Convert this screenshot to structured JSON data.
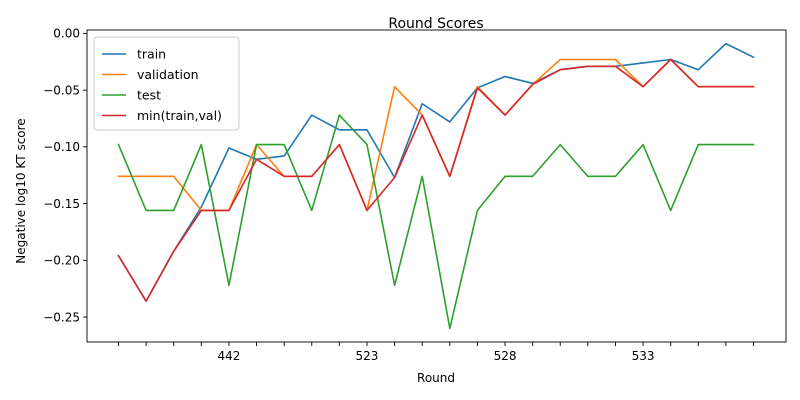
{
  "chart_data": {
    "type": "line",
    "title": "Round Scores",
    "xlabel": "Round",
    "ylabel": "Negative log10 KT score",
    "ylim": [
      -0.272,
      0.003
    ],
    "yticks": [
      0.0,
      -0.05,
      -0.1,
      -0.15,
      -0.2,
      -0.25
    ],
    "ytick_labels": [
      "0.00",
      "−0.05",
      "−0.10",
      "−0.15",
      "−0.20",
      "−0.25"
    ],
    "xtick_labels": [
      "",
      "",
      "",
      "",
      "442",
      "",
      "",
      "",
      "",
      "523",
      "",
      "",
      "",
      "",
      "528",
      "",
      "",
      "",
      "",
      "533",
      "",
      "",
      "",
      ""
    ],
    "grid": false,
    "legend_position": "top-left",
    "colors": {
      "train": "#1f77b4",
      "validation": "#ff7f0e",
      "test": "#2ca02c",
      "min": "#d62728",
      "axis": "#000000"
    },
    "series": [
      {
        "name": "train",
        "values": [
          -0.196,
          -0.236,
          -0.192,
          -0.153,
          -0.101,
          -0.111,
          -0.108,
          -0.072,
          -0.085,
          -0.085,
          -0.127,
          -0.062,
          -0.078,
          -0.048,
          -0.038,
          -0.044,
          -0.032,
          -0.029,
          -0.029,
          -0.026,
          -0.023,
          -0.032,
          -0.009,
          -0.021
        ]
      },
      {
        "name": "validation",
        "values": [
          -0.126,
          -0.126,
          -0.126,
          -0.156,
          -0.156,
          -0.098,
          -0.126,
          -0.126,
          -0.098,
          -0.156,
          -0.047,
          -0.072,
          -0.126,
          -0.047,
          -0.072,
          -0.045,
          -0.023,
          -0.023,
          -0.023,
          -0.047,
          -0.023,
          -0.047,
          -0.047,
          -0.047
        ]
      },
      {
        "name": "test",
        "values": [
          -0.098,
          -0.156,
          -0.156,
          -0.098,
          -0.222,
          -0.098,
          -0.098,
          -0.156,
          -0.072,
          -0.098,
          -0.222,
          -0.126,
          -0.26,
          -0.156,
          -0.126,
          -0.126,
          -0.098,
          -0.126,
          -0.126,
          -0.098,
          -0.156,
          -0.098,
          -0.098,
          -0.098
        ]
      },
      {
        "name": "min(train,val)",
        "values": [
          -0.196,
          -0.236,
          -0.192,
          -0.156,
          -0.156,
          -0.111,
          -0.126,
          -0.126,
          -0.098,
          -0.156,
          -0.127,
          -0.072,
          -0.126,
          -0.048,
          -0.072,
          -0.045,
          -0.032,
          -0.029,
          -0.029,
          -0.047,
          -0.023,
          -0.047,
          -0.047,
          -0.047
        ]
      }
    ]
  }
}
